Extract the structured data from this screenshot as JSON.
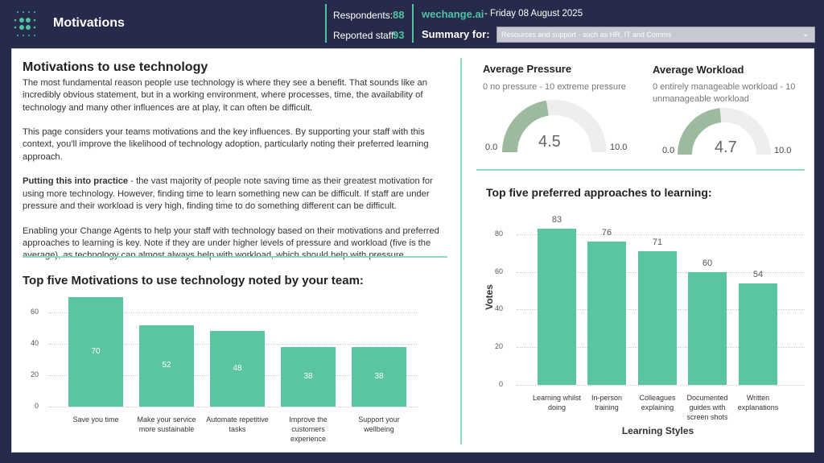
{
  "header": {
    "title": "Motivations",
    "respondents_label": "Respondents:",
    "respondents": "88",
    "staff_label": "Reported staff:",
    "staff": "93",
    "brand": "wechange.ai",
    "date": "- Friday 08 August 2025",
    "summary_label": "Summary for:",
    "summary_value": "Resources and support - such as HR, IT and Comms"
  },
  "intro": {
    "title": "Motivations to use technology",
    "p1": "The most fundamental reason people use technology is where they see a benefit. That sounds like an incredibly obvious statement, but in a working environment, where processes, time, the availability of technology and many other influences are at play, it can often be difficult.",
    "p2": "This page considers your teams motivations and the key influences. By supporting your staff with this context, you'll improve the likelihood of technology adoption, particularly noting their preferred learning approach.",
    "p3_bold": "Putting this into practice",
    "p3": " - the vast majority of people note saving time as their greatest motivation for using more technology. However, finding time to learn something new can be difficult. If staff are under pressure and their workload is very high, finding time to do something different can be difficult.",
    "p4": "Enabling your Change Agents to help your staff with technology based on their motivations and preferred approaches to learning is key. Note if they are under higher levels of pressure and workload (five is the average), as technology can almost always help with workload, which should help with pressure."
  },
  "gauges": [
    {
      "title": "Average Pressure",
      "subtitle": "0 no pressure - 10 extreme pressure",
      "value": 4.5,
      "value_label": "4.5",
      "min": "0.0",
      "max": "10.0"
    },
    {
      "title": "Average Workload",
      "subtitle": "0 entirely manageable workload - 10 unmanageable workload",
      "value": 4.7,
      "value_label": "4.7",
      "min": "0.0",
      "max": "10.0"
    }
  ],
  "colors": {
    "accent": "#4fc3a1",
    "bar": "#5ac5a0",
    "gauge_fill": "#9dba9f",
    "gauge_bg": "#eeeeee",
    "header_bg": "#272b4b"
  },
  "chart_data": [
    {
      "type": "bar",
      "title": "Top five Motivations to use technology noted by your team:",
      "categories": [
        "Save you time",
        "Make your service more sustainable",
        "Automate repetitive tasks",
        "Improve the customers experience",
        "Support your wellbeing"
      ],
      "values": [
        70,
        52,
        48,
        38,
        38
      ],
      "yticks": [
        "0",
        "20",
        "40",
        "60"
      ],
      "ylim": [
        0,
        70
      ],
      "grid": true,
      "xlabel": "",
      "ylabel": ""
    },
    {
      "type": "bar",
      "title": "Top five preferred approaches to learning:",
      "categories": [
        "Learning whilst doing",
        "In-person training",
        "Colleagues explaining",
        "Documented guides with screen shots",
        "Written explanations"
      ],
      "values": [
        83,
        76,
        71,
        60,
        54
      ],
      "yticks": [
        "0",
        "20",
        "40",
        "60",
        "80"
      ],
      "ylim": [
        0,
        83
      ],
      "grid": true,
      "xlabel": "Learning Styles",
      "ylabel": "Votes"
    }
  ]
}
